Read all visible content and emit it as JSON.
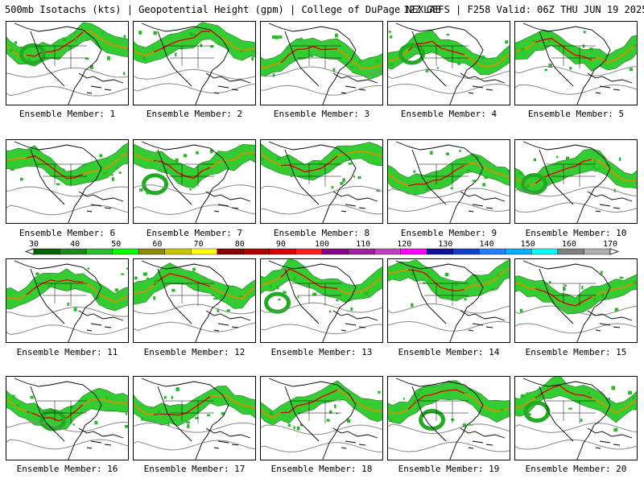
{
  "header": {
    "title_left": "500mb Isotachs (kts) | Geopotential Height (gpm) | College of DuPage NEXLAB",
    "title_right": "12Z GEFS | F258 Valid: 06Z THU JUN 19 2025"
  },
  "legend": {
    "ticks": [
      30,
      40,
      50,
      60,
      70,
      80,
      90,
      100,
      110,
      120,
      130,
      140,
      150,
      160,
      170
    ],
    "colors": [
      "#006400",
      "#1a8a1a",
      "#2bbf2b",
      "#00ff00",
      "#8c8c00",
      "#c8c800",
      "#ffff00",
      "#8b0000",
      "#b00000",
      "#dd0000",
      "#ff2020",
      "#8b008b",
      "#a020a0",
      "#c040c0",
      "#ff00ff",
      "#1010a0",
      "#1040d0",
      "#2080ff",
      "#00b0ff",
      "#00ffff",
      "#808080",
      "#b0b0b0"
    ]
  },
  "panels": [
    {
      "label": "Ensemble Member: 1"
    },
    {
      "label": "Ensemble Member: 2"
    },
    {
      "label": "Ensemble Member: 3"
    },
    {
      "label": "Ensemble Member: 4"
    },
    {
      "label": "Ensemble Member: 5"
    },
    {
      "label": "Ensemble Member: 6"
    },
    {
      "label": "Ensemble Member: 7"
    },
    {
      "label": "Ensemble Member: 8"
    },
    {
      "label": "Ensemble Member: 9"
    },
    {
      "label": "Ensemble Member: 10"
    },
    {
      "label": "Ensemble Member: 11"
    },
    {
      "label": "Ensemble Member: 12"
    },
    {
      "label": "Ensemble Member: 13"
    },
    {
      "label": "Ensemble Member: 14"
    },
    {
      "label": "Ensemble Member: 15"
    },
    {
      "label": "Ensemble Member: 16"
    },
    {
      "label": "Ensemble Member: 17"
    },
    {
      "label": "Ensemble Member: 18"
    },
    {
      "label": "Ensemble Member: 19"
    },
    {
      "label": "Ensemble Member: 20"
    }
  ]
}
